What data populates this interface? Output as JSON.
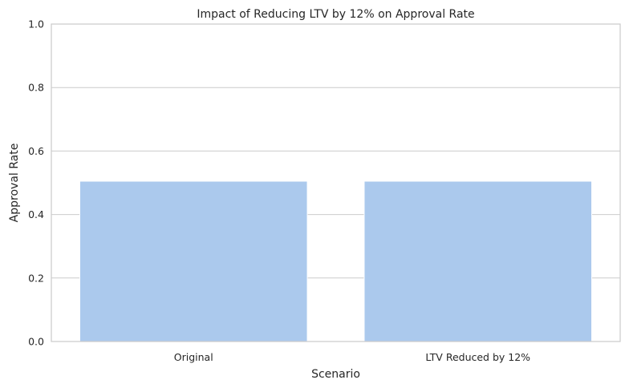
{
  "chart_data": {
    "type": "bar",
    "title": "Impact of Reducing LTV by 12% on Approval Rate",
    "xlabel": "Scenario",
    "ylabel": "Approval Rate",
    "categories": [
      "Original",
      "LTV Reduced by 12%"
    ],
    "values": [
      0.505,
      0.505
    ],
    "ylim": [
      0,
      1.0
    ],
    "yticks": [
      "0.0",
      "0.2",
      "0.4",
      "0.6",
      "0.8",
      "1.0"
    ],
    "grid": true,
    "bar_color": "#abc9ed"
  }
}
